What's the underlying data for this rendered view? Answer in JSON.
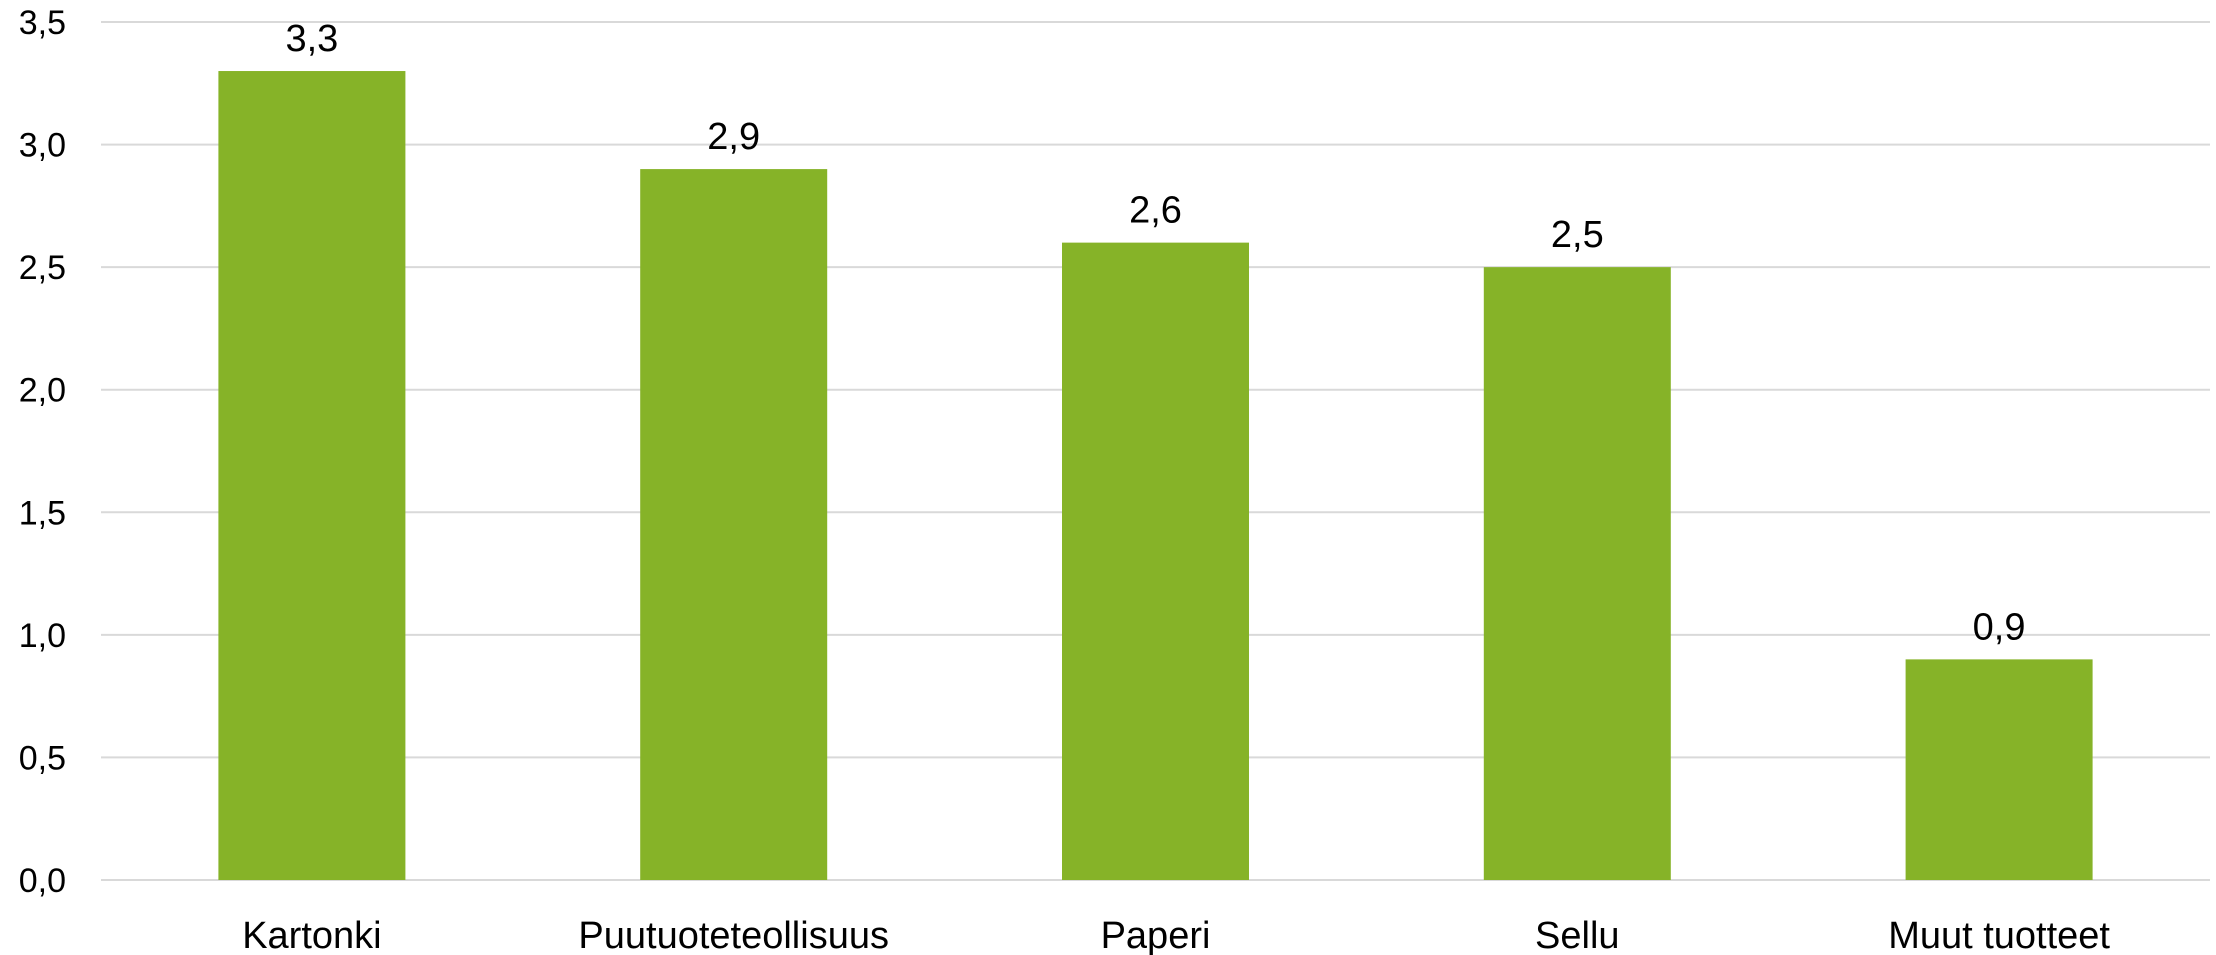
{
  "chart_data": {
    "type": "bar",
    "title": "",
    "xlabel": "",
    "ylabel": "",
    "categories": [
      "Kartonki",
      "Puutuoteteollisuus",
      "Paperi",
      "Sellu",
      "Muut tuotteet"
    ],
    "values": [
      3.3,
      2.9,
      2.6,
      2.5,
      0.9
    ],
    "value_labels": [
      "3,3",
      "2,9",
      "2,6",
      "2,5",
      "0,9"
    ],
    "ylim": [
      0,
      3.5
    ],
    "yticks": [
      0,
      0.5,
      1.0,
      1.5,
      2.0,
      2.5,
      3.0,
      3.5
    ],
    "ytick_labels": [
      "0,0",
      "0,5",
      "1,0",
      "1,5",
      "2,0",
      "2,5",
      "3,0",
      "3,5"
    ],
    "grid": true,
    "legend": "none",
    "colors": {
      "bar": "#86b328",
      "grid": "#d9d9d9"
    }
  }
}
